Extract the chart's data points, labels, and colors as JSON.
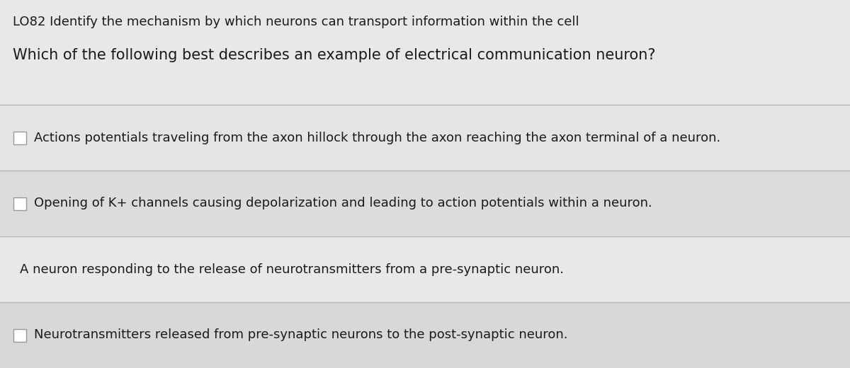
{
  "background_color": "#d8d8d8",
  "card_color": "#e8e8e8",
  "row_colors": [
    "#e0e0e0",
    "#d8d8d8",
    "#e8e8e8",
    "#d8d8d8"
  ],
  "header_bg": "#e4e4e4",
  "header_line1": "LO82 Identify the mechanism by which neurons can transport information within the cell",
  "header_line2": "Which of the following best describes an example of electrical communication neuron?",
  "options": [
    "Actions potentials traveling from the axon hillock through the axon reaching the axon terminal of a neuron.",
    "Opening of K+ channels causing depolarization and leading to action potentials within a neuron.",
    "A neuron responding to the release of neurotransmitters from a pre-synaptic neuron.",
    "Neurotransmitters released from pre-synaptic neurons to the post-synaptic neuron."
  ],
  "option_bold": [
    false,
    false,
    false,
    false
  ],
  "has_checkbox": [
    true,
    true,
    false,
    true
  ],
  "header_fontsize": 13.0,
  "question_fontsize": 15.0,
  "option_fontsize": 13.0,
  "text_color": "#1a1a1a",
  "divider_color": "#b8b8b8",
  "checkbox_color": "#999999",
  "checkbox_size": 0.018
}
